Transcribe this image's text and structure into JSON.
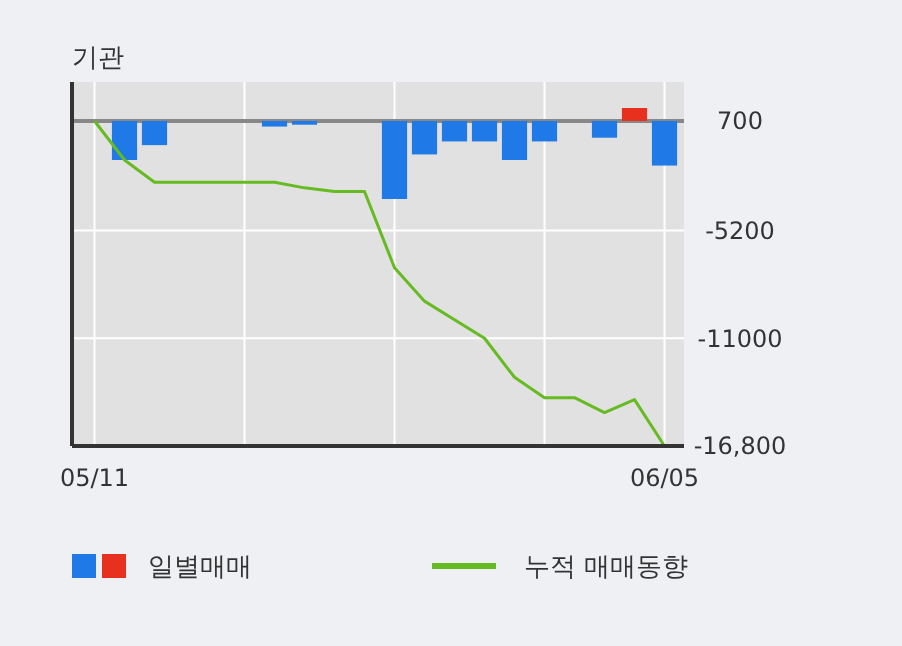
{
  "chart_data": {
    "type": "bar",
    "title": "기관",
    "categories": [
      "05/11",
      null,
      null,
      null,
      null,
      null,
      null,
      null,
      null,
      null,
      null,
      null,
      null,
      null,
      null,
      null,
      null,
      null,
      null,
      "06/05"
    ],
    "series": [
      {
        "name": "일별매매",
        "colors": [
          "#1f7ae8",
          "#1f7ae8",
          "#1f7ae8",
          "#1f7ae8",
          "#1f7ae8",
          "#1f7ae8",
          "#1f7ae8",
          "#1f7ae8",
          "#1f7ae8",
          "#1f7ae8",
          "#1f7ae8",
          "#1f7ae8",
          "#1f7ae8",
          "#1f7ae8",
          "#1f7ae8",
          "#1f7ae8",
          "#1f7ae8",
          "#1f7ae8",
          "#e8301f",
          "#1f7ae8"
        ],
        "base": [
          null,
          700,
          700,
          null,
          null,
          null,
          700,
          700,
          null,
          null,
          700,
          700,
          700,
          700,
          700,
          700,
          null,
          700,
          700,
          700
        ],
        "values": [
          null,
          -2100,
          -1300,
          null,
          null,
          null,
          -300,
          -200,
          null,
          null,
          -4200,
          -1800,
          -1100,
          -1100,
          -2100,
          -1100,
          null,
          -900,
          700,
          -2400
        ]
      },
      {
        "name": "누적 매매동향",
        "type": "line",
        "color": "#66bb22",
        "values": [
          700,
          -1400,
          -2600,
          -2600,
          -2600,
          -2600,
          -2600,
          -2900,
          -3100,
          -3100,
          -7200,
          -9000,
          -10000,
          -11000,
          -13100,
          -14200,
          -14200,
          -15000,
          -14300,
          -16800
        ]
      }
    ],
    "ylim": [
      -16800,
      2800
    ],
    "yticks": [
      700,
      -5200,
      -11000,
      {
        "value": -16800,
        "label": "-16,800"
      }
    ],
    "ref_lines": [
      {
        "axis": "y",
        "value": 700,
        "color": "#888888"
      }
    ],
    "grid": true,
    "legend": "bottom left"
  }
}
